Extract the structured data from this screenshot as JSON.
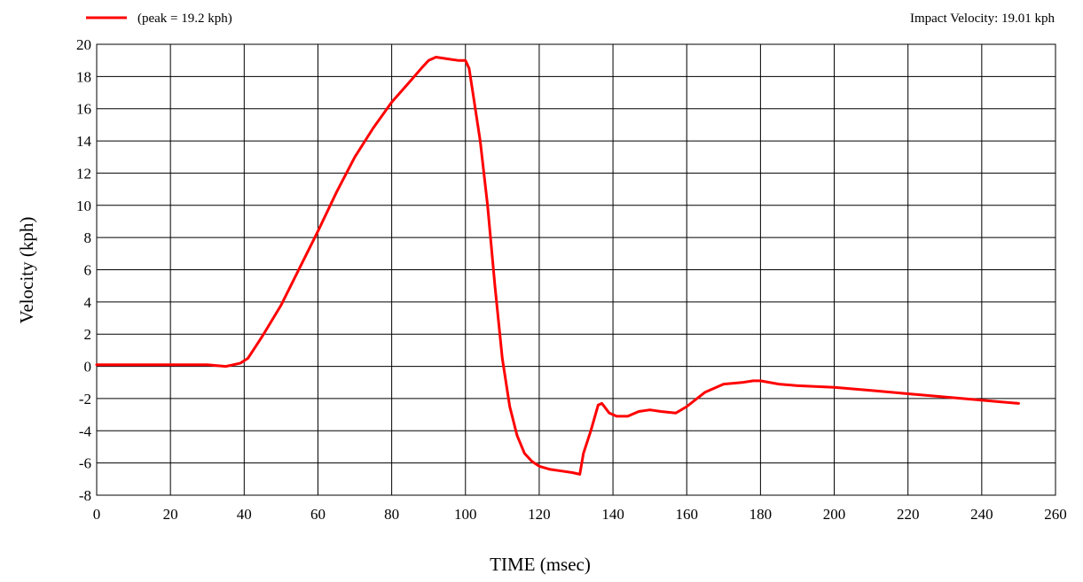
{
  "chart_data": {
    "type": "line",
    "title": "",
    "xlabel": "TIME (msec)",
    "ylabel": "Velocity (kph)",
    "xlim": [
      0,
      260
    ],
    "ylim": [
      -8,
      20
    ],
    "xticks": [
      0,
      20,
      40,
      60,
      80,
      100,
      120,
      140,
      160,
      180,
      200,
      220,
      240,
      260
    ],
    "yticks": [
      -8,
      -6,
      -4,
      -2,
      0,
      2,
      4,
      6,
      8,
      10,
      12,
      14,
      16,
      18,
      20
    ],
    "grid": true,
    "legend_position": "top-left",
    "annotation": "Impact Velocity: 19.01 kph",
    "series": [
      {
        "name": "(peak = 19.2 kph)",
        "color": "#ff0000",
        "points": [
          [
            0,
            0.1
          ],
          [
            10,
            0.1
          ],
          [
            20,
            0.1
          ],
          [
            30,
            0.1
          ],
          [
            35,
            0.0
          ],
          [
            37,
            0.1
          ],
          [
            39,
            0.2
          ],
          [
            41,
            0.5
          ],
          [
            43,
            1.2
          ],
          [
            45,
            1.9
          ],
          [
            50,
            3.8
          ],
          [
            55,
            6.1
          ],
          [
            60,
            8.4
          ],
          [
            65,
            10.8
          ],
          [
            70,
            13.0
          ],
          [
            75,
            14.8
          ],
          [
            80,
            16.4
          ],
          [
            85,
            17.7
          ],
          [
            88,
            18.5
          ],
          [
            90,
            19.0
          ],
          [
            92,
            19.2
          ],
          [
            95,
            19.1
          ],
          [
            98,
            19.0
          ],
          [
            100,
            19.0
          ],
          [
            101,
            18.5
          ],
          [
            102,
            17.0
          ],
          [
            104,
            14.0
          ],
          [
            106,
            10.0
          ],
          [
            108,
            5.0
          ],
          [
            110,
            0.5
          ],
          [
            112,
            -2.5
          ],
          [
            114,
            -4.3
          ],
          [
            116,
            -5.4
          ],
          [
            118,
            -5.9
          ],
          [
            120,
            -6.2
          ],
          [
            123,
            -6.4
          ],
          [
            126,
            -6.5
          ],
          [
            129,
            -6.6
          ],
          [
            131,
            -6.7
          ],
          [
            132,
            -5.4
          ],
          [
            134,
            -4.0
          ],
          [
            136,
            -2.4
          ],
          [
            137,
            -2.3
          ],
          [
            139,
            -2.9
          ],
          [
            141,
            -3.1
          ],
          [
            144,
            -3.1
          ],
          [
            147,
            -2.8
          ],
          [
            150,
            -2.7
          ],
          [
            153,
            -2.8
          ],
          [
            157,
            -2.9
          ],
          [
            160,
            -2.5
          ],
          [
            165,
            -1.6
          ],
          [
            170,
            -1.1
          ],
          [
            175,
            -1.0
          ],
          [
            178,
            -0.9
          ],
          [
            180,
            -0.9
          ],
          [
            185,
            -1.1
          ],
          [
            190,
            -1.2
          ],
          [
            200,
            -1.3
          ],
          [
            210,
            -1.5
          ],
          [
            220,
            -1.7
          ],
          [
            230,
            -1.9
          ],
          [
            240,
            -2.1
          ],
          [
            245,
            -2.2
          ],
          [
            250,
            -2.3
          ]
        ]
      }
    ]
  }
}
